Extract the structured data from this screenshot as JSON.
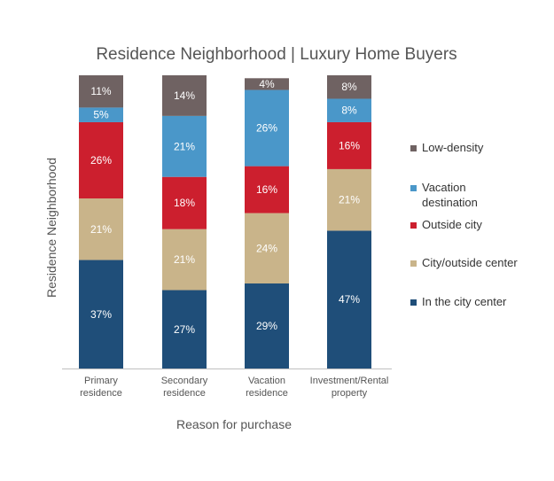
{
  "chart_data": {
    "type": "bar",
    "stacked": true,
    "title": "Residence Neighborhood | Luxury Home Buyers",
    "xlabel": "Reason for purchase",
    "ylabel": "Residence Neighborhood",
    "ylim": [
      0,
      100
    ],
    "grid": false,
    "legend_position": "right",
    "categories": [
      [
        "Primary",
        "residence"
      ],
      [
        "Secondary",
        "residence"
      ],
      [
        "Vacation",
        "residence"
      ],
      [
        "Investment/Rental",
        "property"
      ]
    ],
    "series": [
      {
        "name": "In the city center",
        "color": "#1f4e79",
        "label_color": "#ffffff",
        "values": [
          37,
          27,
          29,
          47
        ]
      },
      {
        "name": "City/outside center",
        "color": "#c9b48a",
        "label_color": "#ffffff",
        "values": [
          21,
          21,
          24,
          21
        ]
      },
      {
        "name": "Outside city",
        "color": "#cc1f2e",
        "label_color": "#ffffff",
        "values": [
          26,
          18,
          16,
          16
        ]
      },
      {
        "name": "Vacation destination",
        "color": "#4a97c9",
        "label_color": "#ffffff",
        "values": [
          5,
          21,
          26,
          8
        ]
      },
      {
        "name": "Low-density",
        "color": "#6f6262",
        "label_color": "#ffffff",
        "values": [
          11,
          14,
          4,
          8
        ]
      }
    ],
    "legend": [
      {
        "series": "Low-density",
        "lines": [
          "Low-density"
        ]
      },
      {
        "series": "Vacation destination",
        "lines": [
          "Vacation",
          "destination"
        ]
      },
      {
        "series": "Outside city",
        "lines": [
          "Outside city"
        ]
      },
      {
        "series": "City/outside center",
        "lines": [
          "City/outside center"
        ]
      },
      {
        "series": "In the city center",
        "lines": [
          "In the city center"
        ]
      }
    ],
    "label_suffix": "%"
  }
}
